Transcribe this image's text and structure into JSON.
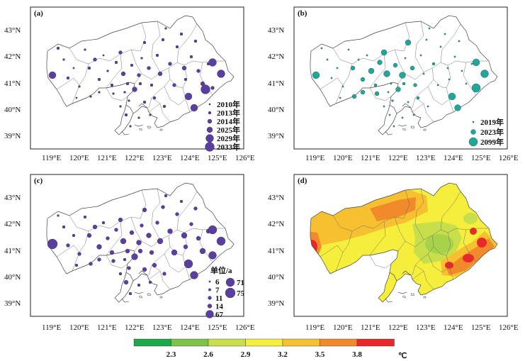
{
  "panels": [
    {
      "label": "(a)",
      "legend_title": "",
      "point_color": "#5a3fa0",
      "legend": [
        {
          "text": "2010年",
          "r": 1.2
        },
        {
          "text": "2013年",
          "r": 2
        },
        {
          "text": "2014年",
          "r": 3
        },
        {
          "text": "2025年",
          "r": 4
        },
        {
          "text": "2029年",
          "r": 5.5
        },
        {
          "text": "2033年",
          "r": 6.5
        }
      ]
    },
    {
      "label": "(b)",
      "legend_title": "",
      "point_color": "#1fa89a",
      "legend": [
        {
          "text": "2019年",
          "r": 1.2
        },
        {
          "text": "2023年",
          "r": 3.5
        },
        {
          "text": "2099年",
          "r": 6
        }
      ]
    },
    {
      "label": "(c)",
      "legend_title": "单位/a",
      "point_color": "#5a3fa0",
      "legend": [
        {
          "text": "6",
          "r": 1.2
        },
        {
          "text": "7",
          "r": 1.8
        },
        {
          "text": "11",
          "r": 2.5
        },
        {
          "text": "14",
          "r": 3
        },
        {
          "text": "67",
          "r": 5.5
        },
        {
          "text": "71",
          "r": 6
        },
        {
          "text": "75",
          "r": 7
        }
      ]
    },
    {
      "label": "(d)",
      "legend_title": ""
    }
  ],
  "axes": {
    "lon_ticks": [
      "119°E",
      "120°E",
      "121°E",
      "122°E",
      "123°E",
      "124°E",
      "125°E",
      "126°E"
    ],
    "lat_ticks": [
      "43°N",
      "42°N",
      "41°N",
      "40°N",
      "39°N"
    ]
  },
  "colorbar": {
    "unit": "℃",
    "ticks": [
      "2.3",
      "2.6",
      "2.9",
      "3.2",
      "3.5",
      "3.8"
    ],
    "colors": [
      "#1aa84a",
      "#7ec24a",
      "#c8de4a",
      "#f6ee3c",
      "#f6c030",
      "#f08a2a",
      "#e8282a"
    ]
  }
}
